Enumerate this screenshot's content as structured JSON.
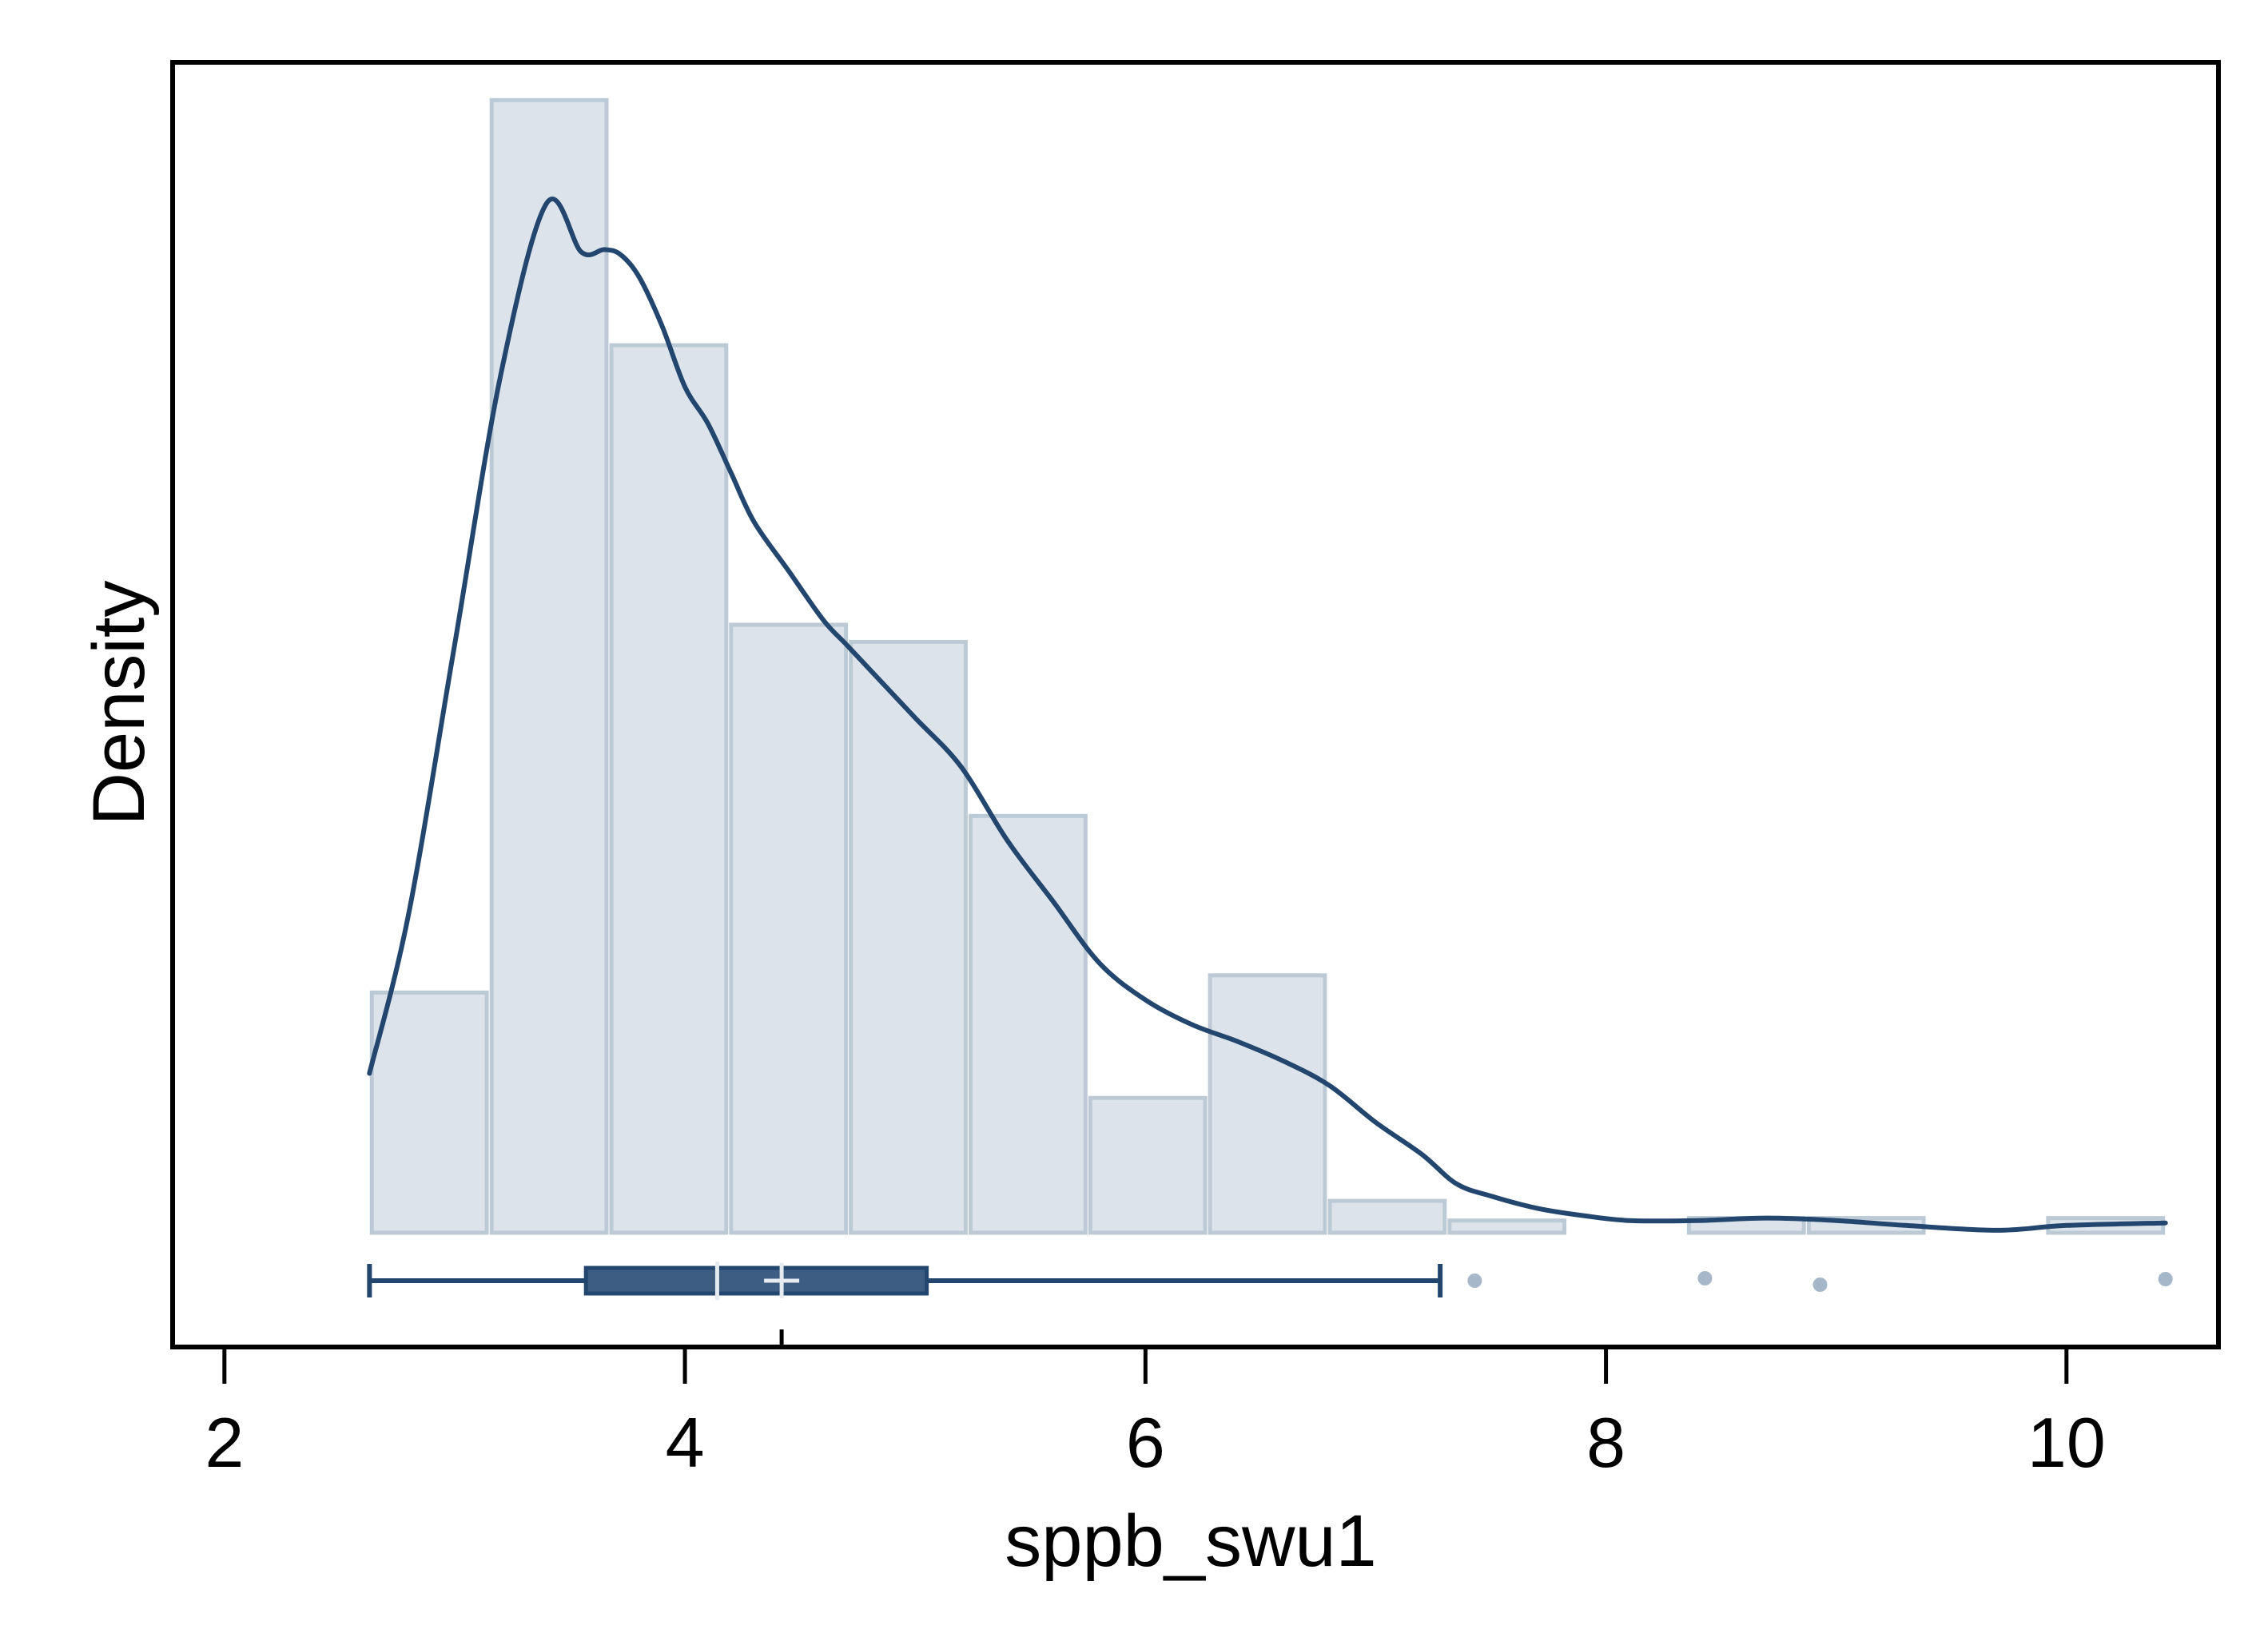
{
  "chart_data": {
    "type": "histogram",
    "title": "",
    "xlabel": "sppb_swu1",
    "ylabel": "Density",
    "xlim": [
      1.775,
      10.66
    ],
    "ylim": [
      -0.0466,
      0.4774
    ],
    "x_ticks": [
      2,
      4,
      6,
      8,
      10
    ],
    "x_tick_labels": [
      "2",
      "4",
      "6",
      "8",
      "10"
    ],
    "y_ticks_shown": false,
    "grid": false,
    "legend": "none",
    "histogram": {
      "bins": [
        {
          "x0": 2.63,
          "x1": 3.15,
          "density": 0.098
        },
        {
          "x0": 3.15,
          "x1": 3.67,
          "density": 0.462
        },
        {
          "x0": 3.67,
          "x1": 4.19,
          "density": 0.362
        },
        {
          "x0": 4.19,
          "x1": 4.71,
          "density": 0.248
        },
        {
          "x0": 4.71,
          "x1": 5.23,
          "density": 0.241
        },
        {
          "x0": 5.23,
          "x1": 5.75,
          "density": 0.17
        },
        {
          "x0": 5.75,
          "x1": 6.27,
          "density": 0.055
        },
        {
          "x0": 6.27,
          "x1": 6.79,
          "density": 0.105
        },
        {
          "x0": 6.79,
          "x1": 7.31,
          "density": 0.013
        },
        {
          "x0": 7.31,
          "x1": 7.83,
          "density": 0.005
        },
        {
          "x0": 7.83,
          "x1": 8.35,
          "density": 0.0
        },
        {
          "x0": 8.35,
          "x1": 8.87,
          "density": 0.006
        },
        {
          "x0": 8.87,
          "x1": 9.39,
          "density": 0.006
        },
        {
          "x0": 9.39,
          "x1": 9.91,
          "density": 0.0
        },
        {
          "x0": 9.91,
          "x1": 10.43,
          "density": 0.006
        }
      ]
    },
    "kde": {
      "x": [
        2.63,
        2.8,
        3.0,
        3.2,
        3.4,
        3.55,
        3.65,
        3.72,
        3.8,
        3.9,
        4.0,
        4.1,
        4.2,
        4.3,
        4.45,
        4.6,
        4.7,
        4.8,
        5.0,
        5.2,
        5.4,
        5.6,
        5.8,
        6.0,
        6.2,
        6.4,
        6.6,
        6.8,
        7.0,
        7.2,
        7.35,
        7.5,
        7.7,
        7.9,
        8.1,
        8.4,
        8.7,
        9.0,
        9.3,
        9.7,
        10.0,
        10.43
      ],
      "y": [
        0.065,
        0.13,
        0.24,
        0.35,
        0.42,
        0.4,
        0.401,
        0.399,
        0.39,
        0.37,
        0.345,
        0.33,
        0.31,
        0.29,
        0.27,
        0.25,
        0.24,
        0.23,
        0.21,
        0.19,
        0.16,
        0.135,
        0.11,
        0.095,
        0.085,
        0.078,
        0.07,
        0.06,
        0.045,
        0.032,
        0.02,
        0.015,
        0.01,
        0.007,
        0.005,
        0.005,
        0.006,
        0.005,
        0.003,
        0.001,
        0.003,
        0.004
      ]
    },
    "boxplot": {
      "whisker_low": 2.63,
      "q1": 3.57,
      "median": 4.14,
      "mean": 4.42,
      "q3": 5.05,
      "whisker_high": 7.28,
      "outliers": [
        7.43,
        8.43,
        8.93,
        10.43
      ]
    },
    "colors": {
      "bar_fill": "#dce3ea",
      "bar_stroke": "#bccad6",
      "kde_line": "#23466f",
      "box_fill": "#3d5d82",
      "box_stroke": "#23466f",
      "marker_light": "#e6ebf0",
      "outlier": "#a6b7c9",
      "frame": "#000000"
    }
  }
}
